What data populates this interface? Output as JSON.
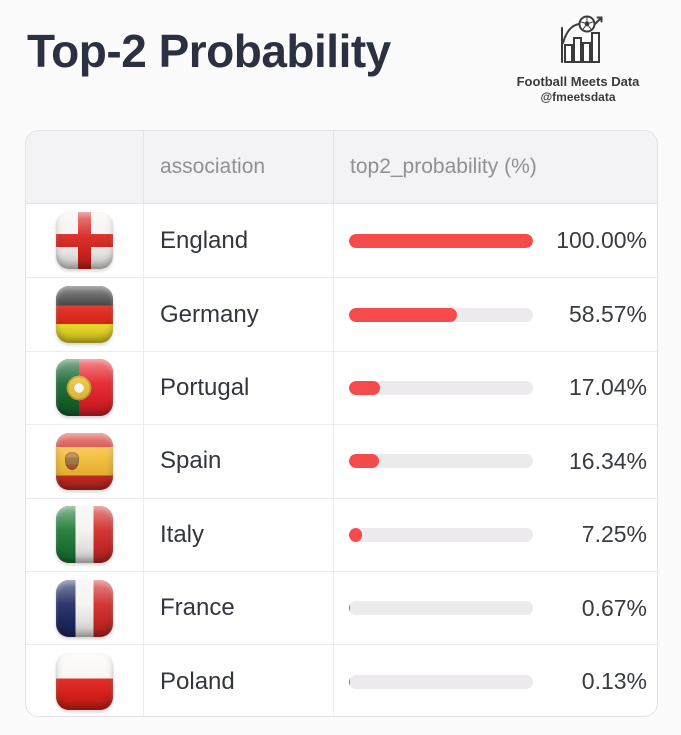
{
  "page": {
    "title": "Top-2 Probability"
  },
  "brand": {
    "name": "Football Meets Data",
    "handle": "@fmeetsdata",
    "logo_icon": "bar-chart-football-icon"
  },
  "table": {
    "columns": [
      {
        "key": "flag",
        "label": ""
      },
      {
        "key": "association",
        "label": "association"
      },
      {
        "key": "top2_probability",
        "label": "top2_probability (%)"
      }
    ],
    "rows": [
      {
        "flag": "england",
        "flag_icon": "england-flag-icon",
        "association": "England",
        "value": 100.0,
        "value_label": "100.00%"
      },
      {
        "flag": "germany",
        "flag_icon": "germany-flag-icon",
        "association": "Germany",
        "value": 58.57,
        "value_label": "58.57%"
      },
      {
        "flag": "portugal",
        "flag_icon": "portugal-flag-icon",
        "association": "Portugal",
        "value": 17.04,
        "value_label": "17.04%"
      },
      {
        "flag": "spain",
        "flag_icon": "spain-flag-icon",
        "association": "Spain",
        "value": 16.34,
        "value_label": "16.34%"
      },
      {
        "flag": "italy",
        "flag_icon": "italy-flag-icon",
        "association": "Italy",
        "value": 7.25,
        "value_label": "7.25%"
      },
      {
        "flag": "france",
        "flag_icon": "france-flag-icon",
        "association": "France",
        "value": 0.67,
        "value_label": "0.67%"
      },
      {
        "flag": "poland",
        "flag_icon": "poland-flag-icon",
        "association": "Poland",
        "value": 0.13,
        "value_label": "0.13%"
      }
    ]
  },
  "colors": {
    "bar_fill": "#f64b4b",
    "bar_track": "#eceaed",
    "title_text": "#2c3142",
    "header_text": "#8f8f97"
  },
  "chart_data": {
    "type": "bar",
    "orientation": "horizontal",
    "title": "Top-2 Probability",
    "categories": [
      "England",
      "Germany",
      "Portugal",
      "Spain",
      "Italy",
      "France",
      "Poland"
    ],
    "values": [
      100.0,
      58.57,
      17.04,
      16.34,
      7.25,
      0.67,
      0.13
    ],
    "value_labels": [
      "100.00%",
      "58.57%",
      "17.04%",
      "16.34%",
      "7.25%",
      "0.67%",
      "0.13%"
    ],
    "xlabel": "top2_probability (%)",
    "ylabel": "association",
    "xlim": [
      0,
      100
    ],
    "grid": false,
    "legend": false
  }
}
